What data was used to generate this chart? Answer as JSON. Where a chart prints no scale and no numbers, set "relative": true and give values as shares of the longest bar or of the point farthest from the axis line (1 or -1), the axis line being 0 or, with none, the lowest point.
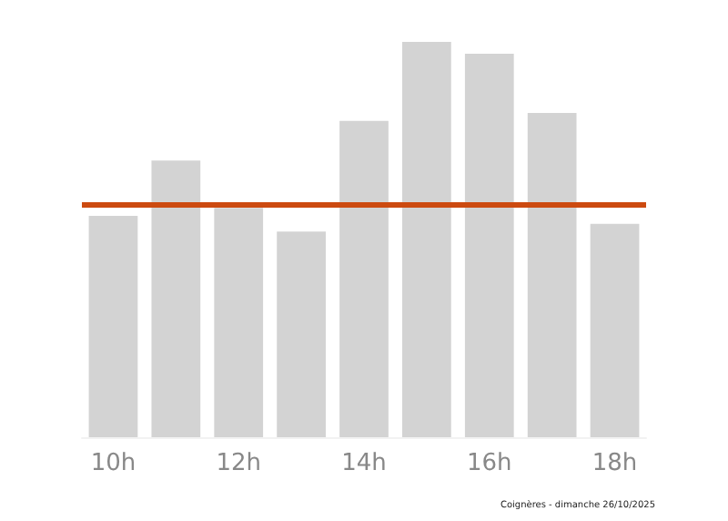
{
  "chart_data": {
    "type": "bar",
    "relative": true,
    "categories": [
      "10h",
      null,
      "12h",
      null,
      "14h",
      null,
      "16h",
      null,
      "18h"
    ],
    "values": [
      0.56,
      0.7,
      0.58,
      0.52,
      0.8,
      1,
      0.97,
      0.82,
      0.54
    ],
    "color": "#d3d3d3",
    "ref_lines": [
      {
        "axis": "y",
        "value": 0.59,
        "label": null,
        "color": "#cc4a10"
      }
    ],
    "annotations": [
      "Coignères - dimanche 26/10/2025"
    ]
  }
}
